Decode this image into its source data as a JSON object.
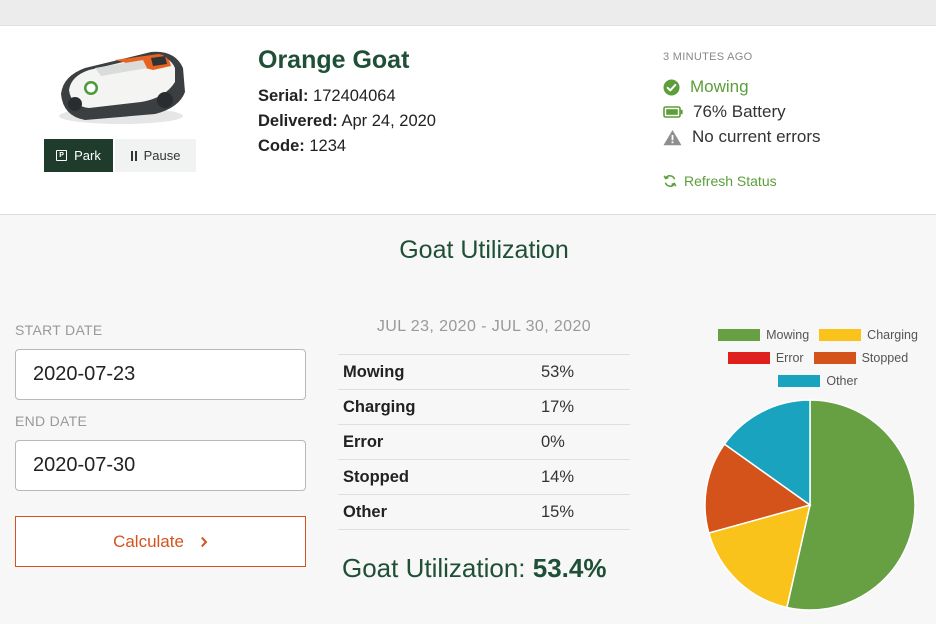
{
  "header": {
    "goat_name": "Orange Goat",
    "serial_label": "Serial:",
    "serial": "172404064",
    "delivered_label": "Delivered:",
    "delivered": "Apr 24, 2020",
    "code_label": "Code:",
    "code": "1234",
    "park_label": "Park",
    "pause_label": "Pause"
  },
  "status": {
    "time_ago": "3 MINUTES AGO",
    "mowing": "Mowing",
    "battery": "76% Battery",
    "errors": "No current errors",
    "refresh_label": "Refresh Status"
  },
  "utilization": {
    "title": "Goat Utilization",
    "start_label": "START DATE",
    "start_value": "2020-07-23",
    "end_label": "END DATE",
    "end_value": "2020-07-30",
    "calculate_label": "Calculate",
    "range": "JUL 23, 2020 - JUL 30, 2020",
    "rows": [
      {
        "category": "Mowing",
        "percent": "53%"
      },
      {
        "category": "Charging",
        "percent": "17%"
      },
      {
        "category": "Error",
        "percent": "0%"
      },
      {
        "category": "Stopped",
        "percent": "14%"
      },
      {
        "category": "Other",
        "percent": "15%"
      }
    ],
    "total_label": "Goat Utilization:",
    "total_value": "53.4%"
  },
  "colors": {
    "brand_dark": "#1f4f36",
    "accent_green": "#5b9e3a",
    "accent_orange": "#d5531e"
  },
  "chart_data": {
    "type": "pie",
    "labels": [
      "Mowing",
      "Charging",
      "Error",
      "Stopped",
      "Other"
    ],
    "values": [
      53,
      17,
      0,
      14,
      15
    ],
    "colors": [
      "#67a043",
      "#f9c31b",
      "#e0201d",
      "#d4531b",
      "#1aa3be"
    ],
    "legend": "top"
  }
}
